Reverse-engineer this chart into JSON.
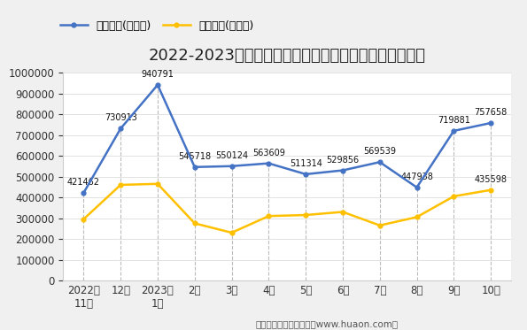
{
  "title": "2022-2023年河南省商品收发货人所在地进、出口额统计",
  "x_labels": [
    "2022年\n11月",
    "12月",
    "2023年\n1月",
    "2月",
    "3月",
    "4月",
    "5月",
    "6月",
    "7月",
    "8月",
    "9月",
    "10月"
  ],
  "export_values": [
    421462,
    730913,
    940791,
    545718,
    550124,
    563609,
    511314,
    529856,
    569539,
    447938,
    719881,
    757658
  ],
  "import_values": [
    295000,
    460000,
    465000,
    275000,
    230000,
    310000,
    315000,
    330000,
    265000,
    305000,
    405000,
    435598
  ],
  "export_label": "出口总额(万美元)",
  "import_label": "进口总额(万美元)",
  "export_color": "#4472c4",
  "import_color": "#ffc000",
  "vline_color": "#bbbbbb",
  "ylim": [
    0,
    1000000
  ],
  "yticks": [
    0,
    100000,
    200000,
    300000,
    400000,
    500000,
    600000,
    700000,
    800000,
    900000,
    1000000
  ],
  "footer": "制图：华经产业研究院（www.huaon.com）",
  "bg_color": "#f0f0f0",
  "plot_bg_color": "#ffffff",
  "title_fontsize": 13,
  "legend_fontsize": 9,
  "label_fontsize": 7,
  "tick_fontsize": 8.5,
  "footer_fontsize": 7.5
}
